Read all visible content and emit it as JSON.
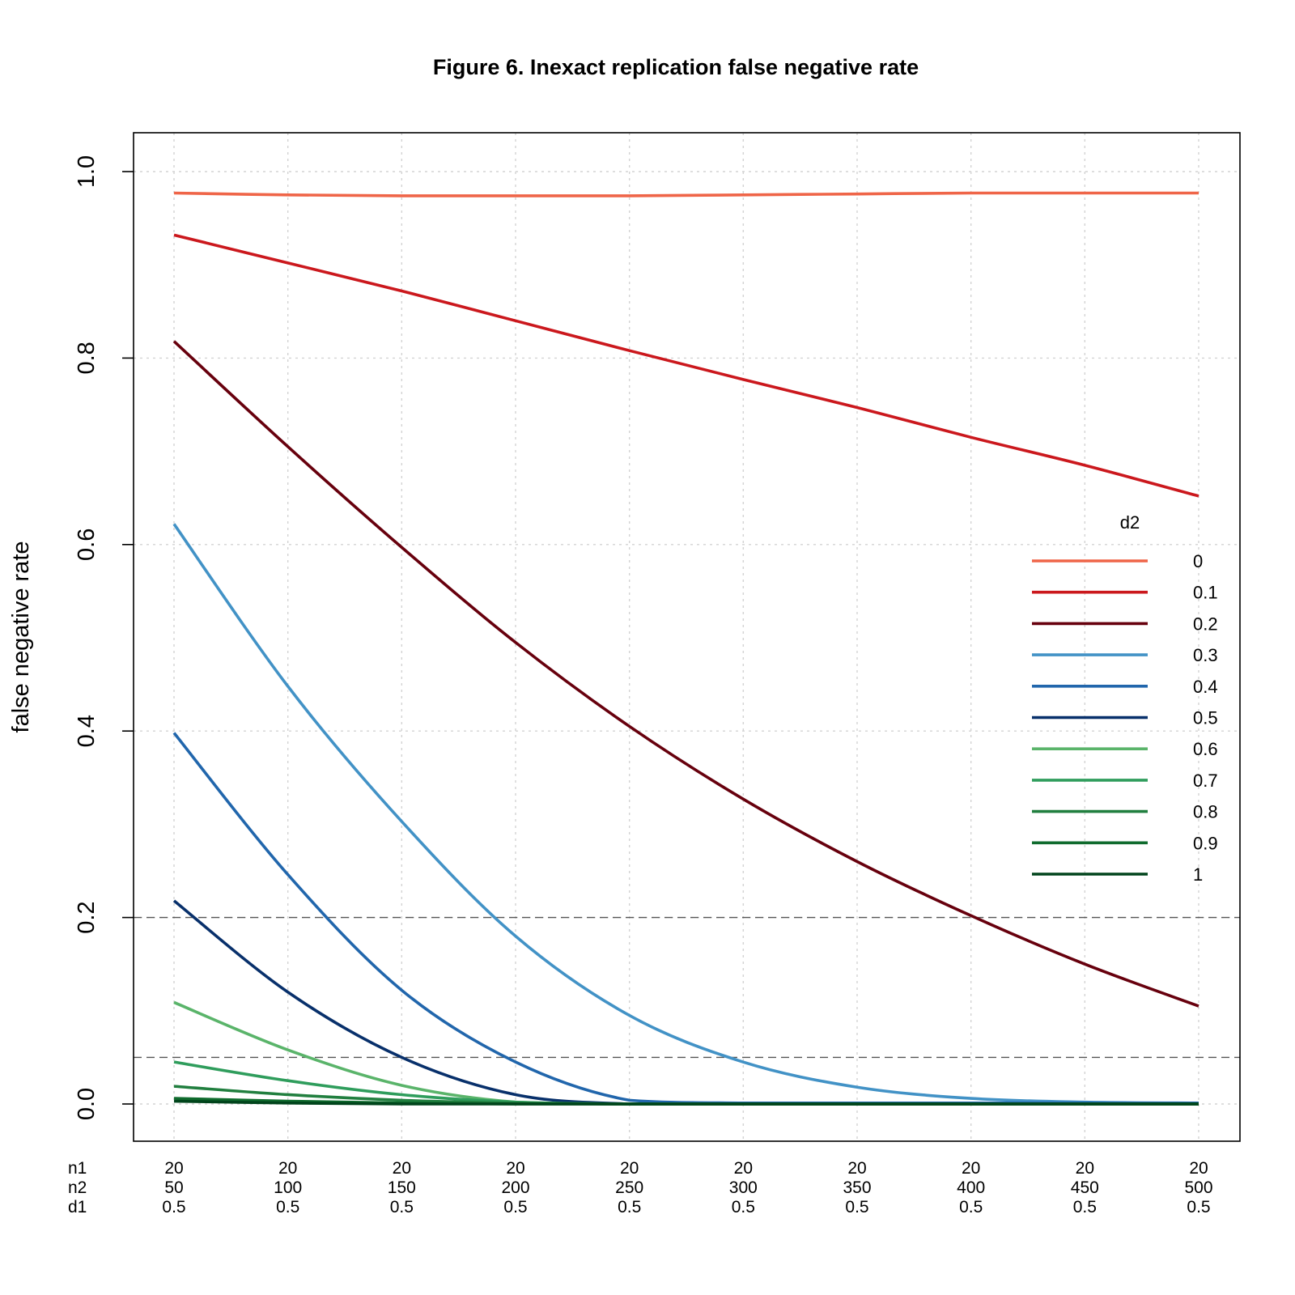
{
  "chart_data": {
    "type": "line",
    "title": "Figure 6. Inexact replication false negative rate",
    "xlabel": "",
    "ylabel": "false negative rate",
    "ylim": [
      -0.04,
      1.04
    ],
    "y_ticks": [
      "0.0",
      "0.2",
      "0.4",
      "0.6",
      "0.8",
      "1.0"
    ],
    "x": [
      50,
      100,
      150,
      200,
      250,
      300,
      350,
      400,
      450,
      500
    ],
    "x_label_rows": [
      {
        "name": "n1",
        "values": [
          "20",
          "20",
          "20",
          "20",
          "20",
          "20",
          "20",
          "20",
          "20",
          "20"
        ]
      },
      {
        "name": "n2",
        "values": [
          "50",
          "100",
          "150",
          "200",
          "250",
          "300",
          "350",
          "400",
          "450",
          "500"
        ]
      },
      {
        "name": "d1",
        "values": [
          "0.5",
          "0.5",
          "0.5",
          "0.5",
          "0.5",
          "0.5",
          "0.5",
          "0.5",
          "0.5",
          "0.5"
        ]
      }
    ],
    "reference_lines": [
      0.2,
      0.05
    ],
    "grid": true,
    "legend": {
      "title": "d2",
      "position": "right"
    },
    "series": [
      {
        "name": "0",
        "color": "#ef6548",
        "values": [
          0.977,
          0.975,
          0.974,
          0.974,
          0.974,
          0.975,
          0.976,
          0.977,
          0.977,
          0.977
        ]
      },
      {
        "name": "0.1",
        "color": "#cb181d",
        "values": [
          0.932,
          0.902,
          0.872,
          0.84,
          0.808,
          0.777,
          0.747,
          0.715,
          0.685,
          0.652
        ]
      },
      {
        "name": "0.2",
        "color": "#67000d",
        "values": [
          0.818,
          0.705,
          0.597,
          0.495,
          0.405,
          0.327,
          0.26,
          0.202,
          0.15,
          0.105
        ]
      },
      {
        "name": "0.3",
        "color": "#4292c6",
        "values": [
          0.622,
          0.448,
          0.303,
          0.18,
          0.095,
          0.045,
          0.018,
          0.006,
          0.002,
          0.001
        ]
      },
      {
        "name": "0.4",
        "color": "#2166ac",
        "values": [
          0.398,
          0.246,
          0.122,
          0.045,
          0.004,
          0.001,
          0.001,
          0.001,
          0.001,
          0.001
        ]
      },
      {
        "name": "0.5",
        "color": "#08306b",
        "values": [
          0.218,
          0.12,
          0.05,
          0.01,
          0.0,
          0.0,
          0.0,
          0.0,
          0.0,
          0.0
        ]
      },
      {
        "name": "0.6",
        "color": "#5ab46a",
        "values": [
          0.109,
          0.058,
          0.02,
          0.002,
          0.0,
          0.0,
          0.0,
          0.0,
          0.0,
          0.0
        ]
      },
      {
        "name": "0.7",
        "color": "#2f9d5c",
        "values": [
          0.045,
          0.025,
          0.01,
          0.002,
          0.0,
          0.0,
          0.0,
          0.0,
          0.0,
          0.0
        ]
      },
      {
        "name": "0.8",
        "color": "#217f3f",
        "values": [
          0.019,
          0.01,
          0.004,
          0.001,
          0.0,
          0.0,
          0.0,
          0.0,
          0.0,
          0.0
        ]
      },
      {
        "name": "0.9",
        "color": "#0f6b2d",
        "values": [
          0.006,
          0.003,
          0.001,
          0.0,
          0.0,
          0.0,
          0.0,
          0.0,
          0.0,
          0.0
        ]
      },
      {
        "name": "1",
        "color": "#00441b",
        "values": [
          0.003,
          0.001,
          0.0,
          0.0,
          0.0,
          0.0,
          0.0,
          0.0,
          0.0,
          0.0
        ]
      }
    ]
  }
}
